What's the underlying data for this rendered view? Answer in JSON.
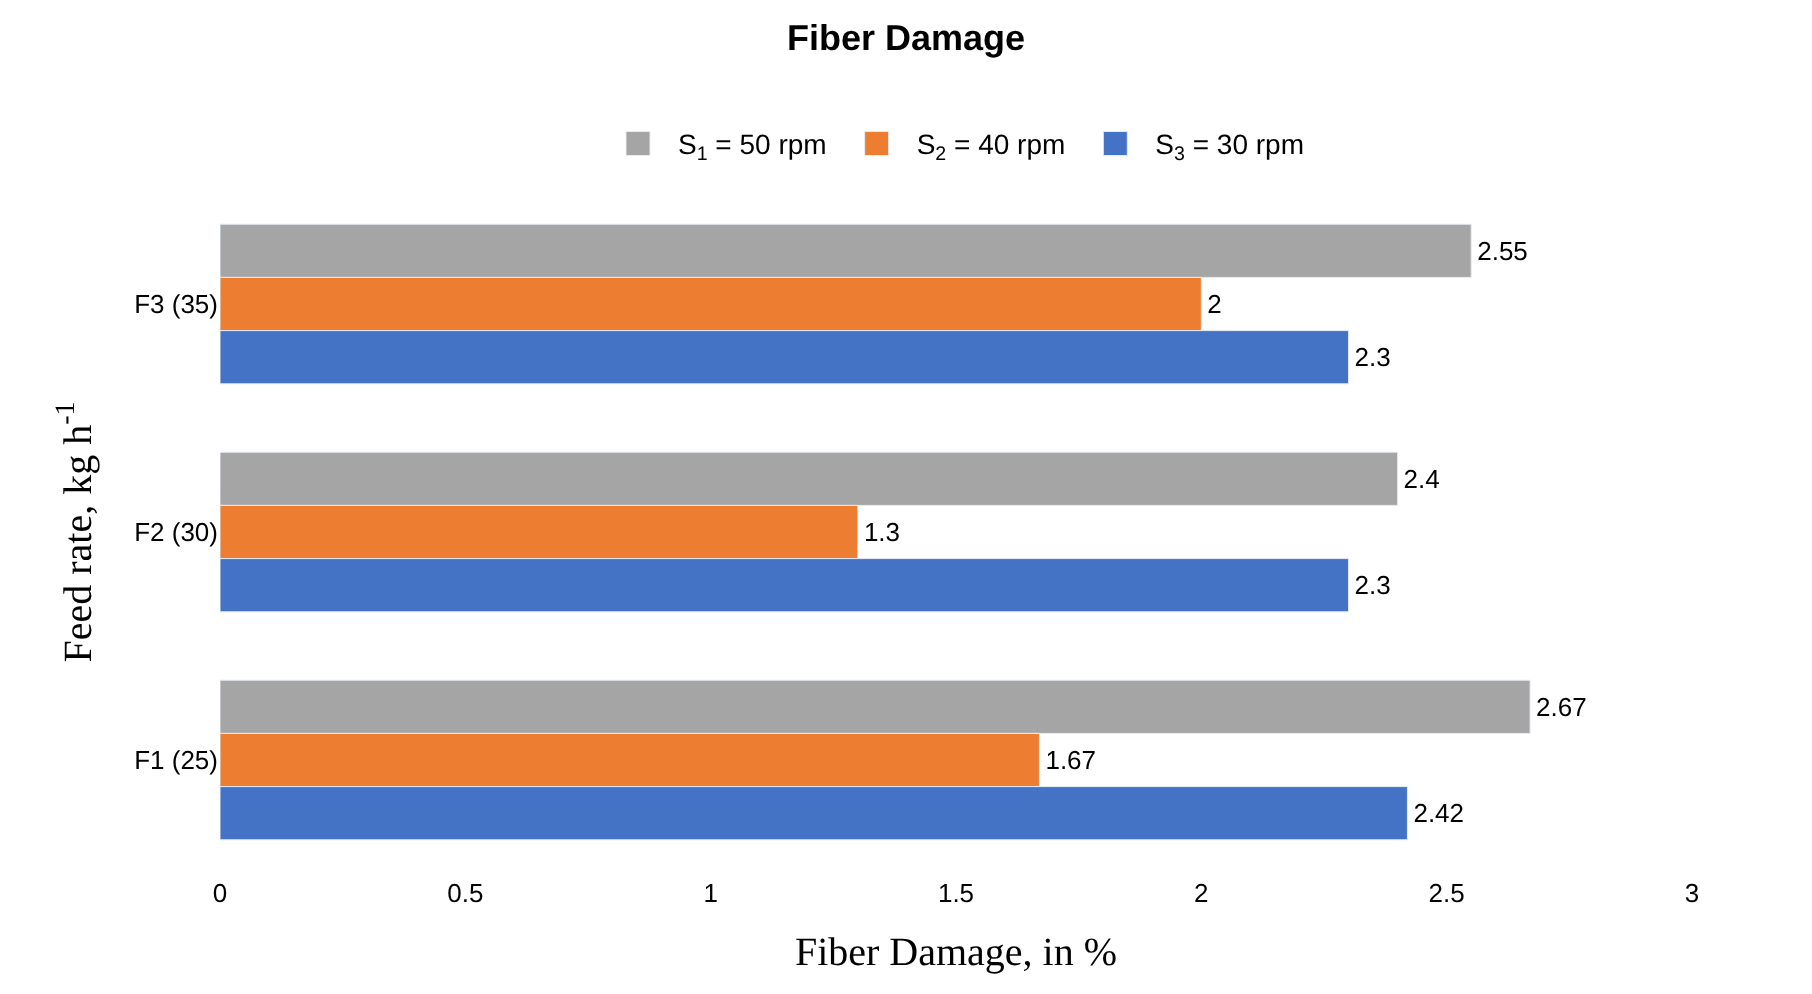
{
  "chart_data": {
    "type": "bar",
    "orientation": "horizontal",
    "title": "Fiber Damage",
    "xlabel": "Fiber Damage, in %",
    "ylabel": "Feed rate, kg h$^{-1}$",
    "categories": [
      "F3 (35)",
      "F2 (30)",
      "F1 (25)"
    ],
    "series": [
      {
        "name": "S$_{1}$ = 50 rpm",
        "color": "#a5a5a5",
        "values": [
          2.55,
          2.4,
          2.67
        ]
      },
      {
        "name": "S$_{2}$ = 40 rpm",
        "color": "#ed7d31",
        "values": [
          2,
          1.3,
          1.67
        ]
      },
      {
        "name": "S$_{3}$ = 30 rpm",
        "color": "#4472c4",
        "values": [
          2.3,
          2.3,
          2.42
        ]
      }
    ],
    "xlim": [
      0,
      3
    ],
    "xticks": [
      0,
      0.5,
      1,
      1.5,
      2,
      2.5,
      3
    ],
    "data_labels": true,
    "legend": "top"
  }
}
